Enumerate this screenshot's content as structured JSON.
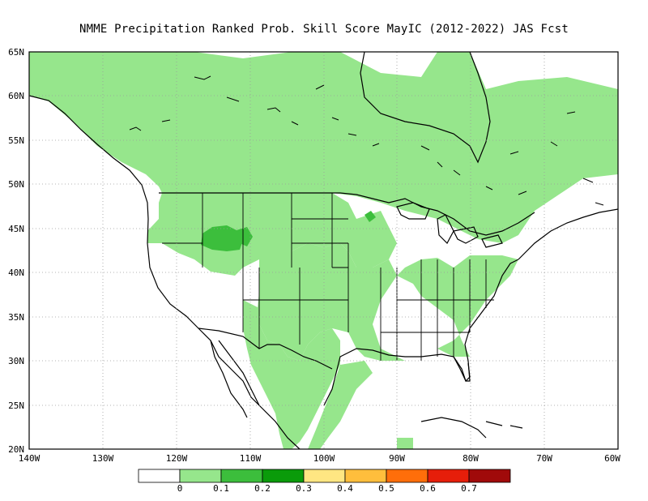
{
  "title": "NMME  Precipitation Ranked Prob. Skill Score MayIC (2012-2022) JAS Fcst",
  "map": {
    "lon_range": [
      -140,
      -60
    ],
    "lat_range": [
      20,
      65
    ],
    "background": "#ffffff",
    "grid": "dotted"
  },
  "lat_labels": [
    "65N",
    "60N",
    "55N",
    "50N",
    "45N",
    "40N",
    "35N",
    "30N",
    "25N",
    "20N"
  ],
  "lon_labels": [
    "140W",
    "130W",
    "120W",
    "110W",
    "100W",
    "90W",
    "80W",
    "70W",
    "60W"
  ],
  "colorbar": {
    "colors": [
      "#ffffff",
      "#96e68c",
      "#3cbe3c",
      "#0a9b0a",
      "#ffe682",
      "#ffbe3c",
      "#ff6e0a",
      "#e61e0a",
      "#a00a0a"
    ],
    "labels": [
      "0",
      "0.1",
      "0.2",
      "0.3",
      "0.4",
      "0.5",
      "0.6",
      "0.7"
    ]
  },
  "palette": {
    "skill_0_1": "#96e68c",
    "skill_0_2": "#3cbe3c",
    "coast": "#000000"
  }
}
